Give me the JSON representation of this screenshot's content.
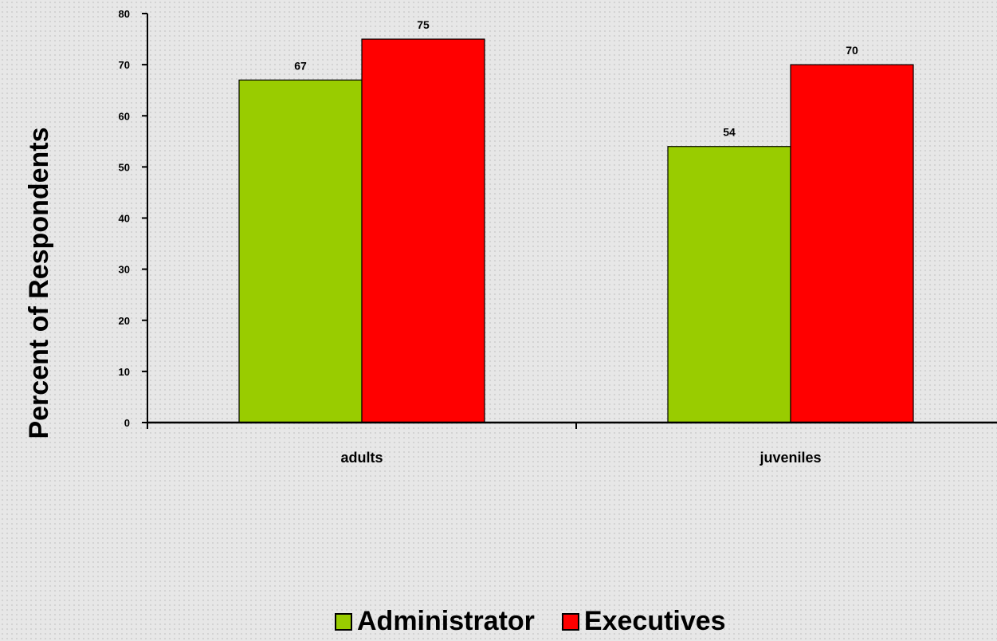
{
  "chart_data": {
    "type": "bar",
    "categories": [
      "adults",
      "juveniles"
    ],
    "series": [
      {
        "name": "Administrator",
        "color": "#99cc00",
        "values": [
          67,
          54
        ]
      },
      {
        "name": "Executives",
        "color": "#ff0000",
        "values": [
          75,
          70
        ]
      }
    ],
    "data_labels": [
      [
        "67",
        "54"
      ],
      [
        "75",
        "70"
      ]
    ],
    "ylabel": "Percent of Respondents",
    "xlabel": "",
    "ylim": [
      0,
      80
    ],
    "yticks": [
      0,
      10,
      20,
      30,
      40,
      50,
      60,
      70,
      80
    ],
    "ytick_labels": [
      "0",
      "10",
      "20",
      "30",
      "40",
      "50",
      "60",
      "70",
      "80"
    ],
    "legend_position": "bottom",
    "grid": false
  }
}
